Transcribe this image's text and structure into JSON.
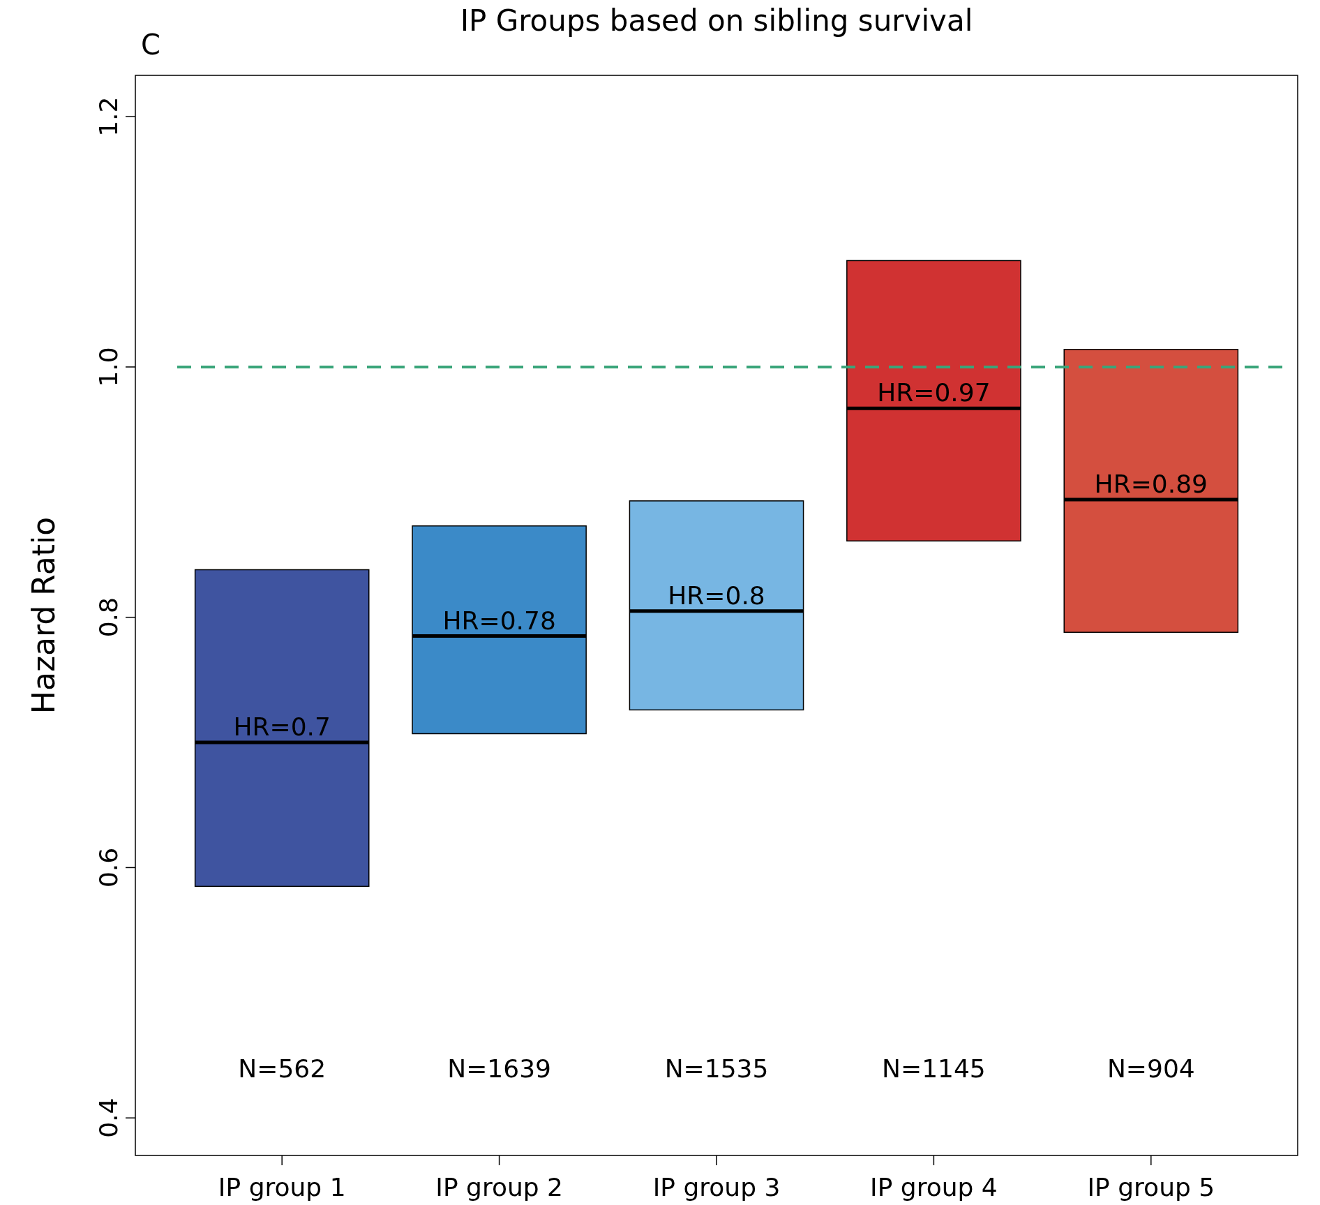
{
  "chart_data": {
    "type": "box",
    "title": "IP Groups based on sibling survival",
    "subtitle": "C",
    "ylabel": "Hazard Ratio",
    "categories": [
      "IP group 1",
      "IP group 2",
      "IP group 3",
      "IP group 4",
      "IP group 5"
    ],
    "boxes": [
      {
        "low": 0.585,
        "q1": 0.585,
        "median": 0.7,
        "q3": 0.838,
        "high": 0.838
      },
      {
        "low": 0.707,
        "q1": 0.707,
        "median": 0.785,
        "q3": 0.873,
        "high": 0.873
      },
      {
        "low": 0.726,
        "q1": 0.726,
        "median": 0.805,
        "q3": 0.893,
        "high": 0.893
      },
      {
        "low": 0.861,
        "q1": 0.861,
        "median": 0.967,
        "q3": 1.085,
        "high": 1.085
      },
      {
        "low": 0.788,
        "q1": 0.788,
        "median": 0.894,
        "q3": 1.014,
        "high": 1.014
      }
    ],
    "colors": [
      "#3f54a0",
      "#3b8ac8",
      "#77b6e3",
      "#d03232",
      "#d44f3f"
    ],
    "ylim": [
      0.37,
      1.233
    ],
    "yticks": [
      0.4,
      0.6,
      0.8,
      {
        "value": 1,
        "label": "1.0"
      },
      1.2
    ],
    "ref_lines": [
      {
        "axis": "y",
        "value": 1,
        "color": "#3aa57a",
        "line_style": "dashed"
      }
    ],
    "annotations": [
      {
        "text": "HR=0.7",
        "x": "IP group 1",
        "y": 0.7
      },
      {
        "text": "HR=0.78",
        "x": "IP group 2",
        "y": 0.785
      },
      {
        "text": "HR=0.8",
        "x": "IP group 3",
        "y": 0.805
      },
      {
        "text": "HR=0.97",
        "x": "IP group 4",
        "y": 0.967
      },
      {
        "text": "HR=0.89",
        "x": "IP group 5",
        "y": 0.894
      },
      "N=562",
      "N=1639",
      "N=1535",
      "N=1145",
      "N=904"
    ],
    "grid": false
  }
}
